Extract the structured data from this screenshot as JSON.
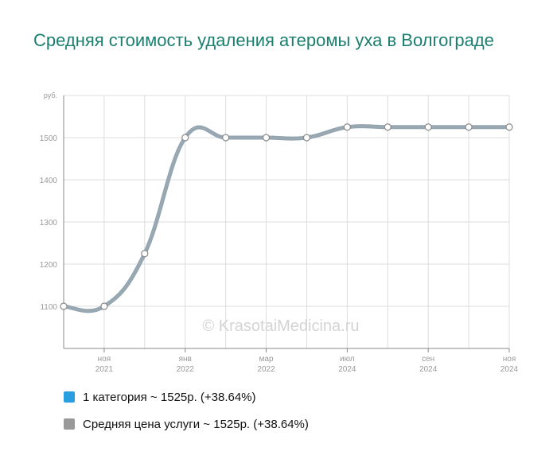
{
  "title": "Средняя стоимость удаления атеромы уха в Волгограде",
  "watermark": "© KrasotaiMedicina.ru",
  "colors": {
    "title": "#1a7f6e",
    "line": "#8fa3b0",
    "series1": "#2a9fe0",
    "series2": "#999999",
    "grid": "#dddddd"
  },
  "legend": [
    {
      "label": "1 категория ~ 1525р. (+38.64%)",
      "color": "#2a9fe0"
    },
    {
      "label": "Средняя цена услуги ~ 1525р. (+38.64%)",
      "color": "#999999"
    }
  ],
  "chart_data": {
    "type": "line",
    "title": "Средняя стоимость удаления атеромы уха в Волгограде",
    "ylabel": "руб.",
    "ylim": [
      1000,
      1600
    ],
    "yticks": [
      1100,
      1200,
      1300,
      1400,
      1500
    ],
    "x": [
      "2021-10",
      "2021-11",
      "2021-12",
      "2022-01",
      "2022-02",
      "2022-03",
      "2022-04",
      "2024-07",
      "2024-08",
      "2024-09",
      "2024-10",
      "2024-11"
    ],
    "xtick_labels": [
      {
        "index": 1,
        "month": "ноя",
        "year": "2021"
      },
      {
        "index": 3,
        "month": "янв",
        "year": "2022"
      },
      {
        "index": 5,
        "month": "мар",
        "year": "2022"
      },
      {
        "index": 7,
        "month": "июл",
        "year": "2024"
      },
      {
        "index": 9,
        "month": "сен",
        "year": "2024"
      },
      {
        "index": 11,
        "month": "ноя",
        "year": "2024"
      }
    ],
    "series": [
      {
        "name": "1 категория ~ 1525р. (+38.64%)",
        "values": [
          1100,
          1100,
          1225,
          1500,
          1500,
          1500,
          1500,
          1525,
          1525,
          1525,
          1525,
          1525
        ]
      },
      {
        "name": "Средняя цена услуги ~ 1525р. (+38.64%)",
        "values": [
          1100,
          1100,
          1225,
          1500,
          1500,
          1500,
          1500,
          1525,
          1525,
          1525,
          1525,
          1525
        ]
      }
    ],
    "grid": true
  }
}
